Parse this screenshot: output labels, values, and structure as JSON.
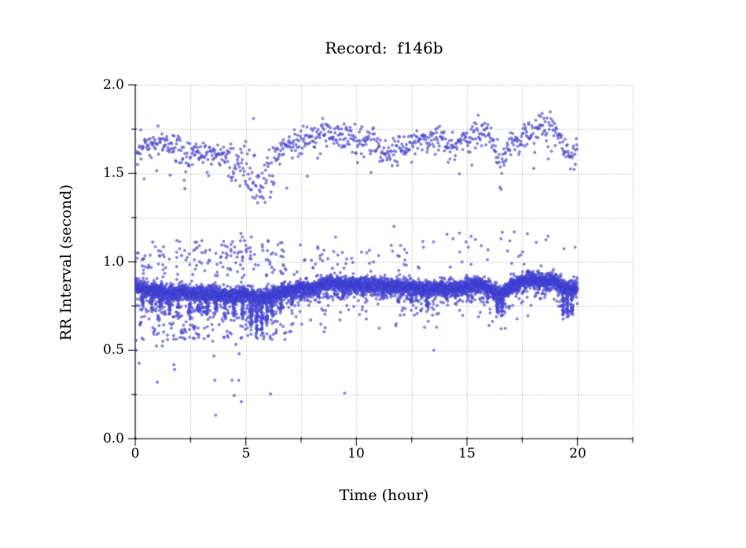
{
  "chart_data": {
    "type": "scatter",
    "title": "Record:  f146b",
    "xlabel": "Time (hour)",
    "ylabel": "RR Interval (second)",
    "xlim": [
      0,
      22.5
    ],
    "ylim": [
      0.0,
      2.0
    ],
    "x_major_ticks": [
      0,
      5,
      10,
      15,
      20
    ],
    "x_tick_labels": [
      "0",
      "5",
      "10",
      "15",
      "20"
    ],
    "x_minor_ticks": [
      2.5,
      7.5,
      12.5,
      17.5,
      22.5
    ],
    "y_major_ticks": [
      0.0,
      0.5,
      1.0,
      1.5,
      2.0
    ],
    "y_tick_labels": [
      "0.0",
      "0.5",
      "1.0",
      "1.5",
      "2.0"
    ],
    "y_minor_ticks": [
      0.25,
      0.75,
      1.25,
      1.75
    ],
    "grid": {
      "show": true,
      "style": "dotted",
      "color": "#9c9c9c"
    },
    "axis_color": "#000000",
    "marker": {
      "shape": "open-circle",
      "radius": 1.4,
      "color": "#3434cd",
      "fill": "#8585e2"
    },
    "seed": 7,
    "series": {
      "main_band": {
        "x_start": 0.02,
        "x_end": 20.0,
        "points_per_hour": 320,
        "sd": 0.02,
        "down_tail_frac": 0.16,
        "down_tail_max": 0.05,
        "up_tail_frac": 0.08,
        "up_tail_max": 0.04,
        "center": [
          [
            0,
            0.86
          ],
          [
            0.5,
            0.84
          ],
          [
            1,
            0.84
          ],
          [
            1.5,
            0.82
          ],
          [
            2,
            0.83
          ],
          [
            2.5,
            0.82
          ],
          [
            3,
            0.82
          ],
          [
            3.5,
            0.82
          ],
          [
            4,
            0.81
          ],
          [
            4.5,
            0.81
          ],
          [
            5,
            0.82
          ],
          [
            5.5,
            0.79
          ],
          [
            6,
            0.8
          ],
          [
            6.5,
            0.82
          ],
          [
            7,
            0.84
          ],
          [
            7.5,
            0.85
          ],
          [
            8,
            0.85
          ],
          [
            8.5,
            0.87
          ],
          [
            9,
            0.88
          ],
          [
            9.5,
            0.87
          ],
          [
            10,
            0.87
          ],
          [
            10.5,
            0.87
          ],
          [
            11,
            0.87
          ],
          [
            11.5,
            0.86
          ],
          [
            12,
            0.86
          ],
          [
            12.5,
            0.86
          ],
          [
            13,
            0.84
          ],
          [
            13.5,
            0.85
          ],
          [
            14,
            0.85
          ],
          [
            14.5,
            0.85
          ],
          [
            15,
            0.86
          ],
          [
            15.5,
            0.87
          ],
          [
            16,
            0.85
          ],
          [
            16.5,
            0.81
          ],
          [
            17,
            0.86
          ],
          [
            17.5,
            0.89
          ],
          [
            18,
            0.9
          ],
          [
            18.5,
            0.89
          ],
          [
            19,
            0.89
          ],
          [
            19.5,
            0.84
          ],
          [
            20,
            0.85
          ]
        ],
        "dips": [
          [
            0.35,
            0.08
          ],
          [
            0.75,
            0.1
          ],
          [
            1.15,
            0.09
          ],
          [
            1.55,
            0.1
          ],
          [
            1.95,
            0.08
          ],
          [
            2.45,
            0.1
          ],
          [
            2.85,
            0.09
          ],
          [
            3.25,
            0.1
          ],
          [
            3.65,
            0.09
          ],
          [
            4.05,
            0.1
          ],
          [
            4.45,
            0.08
          ],
          [
            4.85,
            0.12
          ],
          [
            5.25,
            0.15
          ],
          [
            5.5,
            0.2
          ],
          [
            5.7,
            0.18
          ],
          [
            5.95,
            0.14
          ],
          [
            6.2,
            0.1
          ],
          [
            6.6,
            0.08
          ],
          [
            7.1,
            0.07
          ],
          [
            7.5,
            0.06
          ],
          [
            8.3,
            0.05
          ],
          [
            9.4,
            0.06
          ],
          [
            10.3,
            0.05
          ],
          [
            11.2,
            0.06
          ],
          [
            11.9,
            0.07
          ],
          [
            12.5,
            0.08
          ],
          [
            13.2,
            0.09
          ],
          [
            14.1,
            0.06
          ],
          [
            15.0,
            0.05
          ],
          [
            16.4,
            0.1
          ],
          [
            16.6,
            0.1
          ],
          [
            19.35,
            0.13
          ],
          [
            19.55,
            0.14
          ],
          [
            19.75,
            0.12
          ]
        ],
        "dip_width": 0.05,
        "dip_points_per_depth": 260
      },
      "upper_band": {
        "x_start": 0.05,
        "x_end": 20.0,
        "points_per_hour": 42,
        "sd": 0.035,
        "down_tail_frac": 0.12,
        "down_tail_max": 0.08,
        "up_tail_frac": 0.0,
        "up_tail_max": 0.0,
        "center": [
          [
            0,
            1.63
          ],
          [
            0.5,
            1.66
          ],
          [
            1,
            1.68
          ],
          [
            1.5,
            1.66
          ],
          [
            2,
            1.63
          ],
          [
            2.3,
            1.57
          ],
          [
            2.6,
            1.61
          ],
          [
            3,
            1.63
          ],
          [
            3.5,
            1.62
          ],
          [
            4,
            1.59
          ],
          [
            4.5,
            1.57
          ],
          [
            5,
            1.55
          ],
          [
            5.3,
            1.46
          ],
          [
            5.5,
            1.4
          ],
          [
            5.7,
            1.43
          ],
          [
            6,
            1.5
          ],
          [
            6.3,
            1.58
          ],
          [
            6.6,
            1.63
          ],
          [
            7,
            1.67
          ],
          [
            7.5,
            1.68
          ],
          [
            8,
            1.7
          ],
          [
            8.5,
            1.73
          ],
          [
            9,
            1.72
          ],
          [
            9.5,
            1.71
          ],
          [
            10,
            1.7
          ],
          [
            10.5,
            1.7
          ],
          [
            11,
            1.67
          ],
          [
            11.5,
            1.61
          ],
          [
            11.8,
            1.63
          ],
          [
            12,
            1.66
          ],
          [
            12.5,
            1.68
          ],
          [
            13,
            1.67
          ],
          [
            13.5,
            1.7
          ],
          [
            14,
            1.67
          ],
          [
            14.5,
            1.64
          ],
          [
            15,
            1.7
          ],
          [
            15.5,
            1.73
          ],
          [
            16,
            1.71
          ],
          [
            16.3,
            1.62
          ],
          [
            16.5,
            1.53
          ],
          [
            16.7,
            1.62
          ],
          [
            17,
            1.68
          ],
          [
            17.5,
            1.7
          ],
          [
            18,
            1.74
          ],
          [
            18.5,
            1.77
          ],
          [
            19,
            1.76
          ],
          [
            19.3,
            1.68
          ],
          [
            19.5,
            1.61
          ],
          [
            19.7,
            1.58
          ],
          [
            19.9,
            1.63
          ],
          [
            20,
            1.66
          ]
        ],
        "spread_boost": [
          [
            2.1,
            2.5,
            0.05
          ],
          [
            4.3,
            6.3,
            0.07
          ],
          [
            16.2,
            16.8,
            0.05
          ]
        ]
      },
      "above_scatter_regions": [
        [
          0.05,
          6.8,
          0.92,
          1.12,
          150
        ],
        [
          6.8,
          13.0,
          0.93,
          1.1,
          45
        ],
        [
          13.0,
          20.0,
          0.95,
          1.18,
          32
        ]
      ],
      "below_scatter_regions": [
        [
          0.2,
          6.8,
          0.56,
          0.74,
          170
        ],
        [
          6.8,
          13.5,
          0.6,
          0.73,
          26
        ],
        [
          13.5,
          20.0,
          0.62,
          0.72,
          14
        ]
      ],
      "mid_outliers": [
        [
          4.78,
          1.16
        ],
        [
          4.85,
          1.14
        ],
        [
          5.2,
          1.08
        ],
        [
          5.25,
          1.14
        ],
        [
          9.06,
          1.14
        ],
        [
          14.37,
          1.13
        ],
        [
          16.54,
          1.13
        ],
        [
          5.35,
          1.81
        ],
        [
          11.7,
          1.2
        ]
      ],
      "low_outliers": [
        [
          0.04,
          0.556
        ],
        [
          0.96,
          0.524
        ],
        [
          1.25,
          0.551
        ],
        [
          1.22,
          0.524
        ],
        [
          0.04,
          0.5
        ],
        [
          0.18,
          0.427
        ],
        [
          1.75,
          0.418
        ],
        [
          1.78,
          0.391
        ],
        [
          1.0,
          0.32
        ],
        [
          3.5,
          0.551
        ],
        [
          3.56,
          0.467
        ],
        [
          3.6,
          0.33
        ],
        [
          3.64,
          0.133
        ],
        [
          4.38,
          0.33
        ],
        [
          4.68,
          0.33
        ],
        [
          4.55,
          0.533
        ],
        [
          4.7,
          0.48
        ],
        [
          4.48,
          0.244
        ],
        [
          4.8,
          0.209
        ],
        [
          6.1,
          0.57
        ],
        [
          6.12,
          0.253
        ],
        [
          9.47,
          0.258
        ],
        [
          13.5,
          0.5
        ]
      ]
    }
  }
}
